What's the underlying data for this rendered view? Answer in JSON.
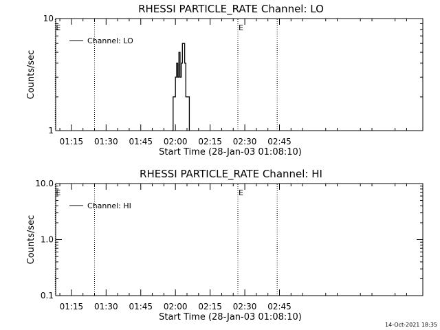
{
  "footer": {
    "timestamp": "14-Oct-2021 18:35"
  },
  "chart_data": [
    {
      "type": "line",
      "title": "RHESSI PARTICLE_RATE Channel: LO",
      "xlabel": "Start Time (28-Jan-03 01:08:10)",
      "ylabel": "Counts/sec",
      "yscale": "log",
      "xlim_minutes_after_0100": [
        8.2,
        167
      ],
      "ylim": [
        1,
        10
      ],
      "x_tick_labels": [
        "01:15",
        "01:30",
        "01:45",
        "02:00",
        "02:15",
        "02:30",
        "02:45"
      ],
      "y_tick_labels": [
        "1",
        "10"
      ],
      "legend": {
        "entry": "Channel: LO",
        "placement": "top-left"
      },
      "event_markers": [
        {
          "label": "E",
          "time": "01:08"
        },
        {
          "label": "",
          "time": "01:25"
        },
        {
          "label": "E",
          "time": "02:27"
        },
        {
          "label": "",
          "time": "02:44"
        }
      ],
      "series": [
        {
          "name": "Channel: LO",
          "x": [
            "01:58:30",
            "01:59:00",
            "01:59:30",
            "02:00:00",
            "02:00:30",
            "02:01:00",
            "02:01:30",
            "02:02:00",
            "02:02:30",
            "02:03:00",
            "02:03:30",
            "02:04:00",
            "02:04:30",
            "02:05:00",
            "02:05:30",
            "02:06:00"
          ],
          "y": [
            1,
            2,
            2,
            3,
            4,
            3,
            5,
            3,
            4,
            6,
            6,
            4,
            2,
            2,
            2,
            1
          ]
        }
      ]
    },
    {
      "type": "line",
      "title": "RHESSI PARTICLE_RATE Channel: HI",
      "xlabel": "Start Time (28-Jan-03 01:08:10)",
      "ylabel": "Counts/sec",
      "yscale": "log",
      "xlim_minutes_after_0100": [
        8.2,
        167
      ],
      "ylim": [
        0.1,
        10
      ],
      "x_tick_labels": [
        "01:15",
        "01:30",
        "01:45",
        "02:00",
        "02:15",
        "02:30",
        "02:45"
      ],
      "y_tick_labels": [
        "0.1",
        "1.0",
        "10.0"
      ],
      "legend": {
        "entry": "Channel: HI",
        "placement": "top-left"
      },
      "event_markers": [
        {
          "label": "E",
          "time": "01:08"
        },
        {
          "label": "",
          "time": "01:25"
        },
        {
          "label": "E",
          "time": "02:27"
        },
        {
          "label": "",
          "time": "02:44"
        }
      ],
      "series": [
        {
          "name": "Channel: HI",
          "x": [],
          "y": []
        }
      ]
    }
  ]
}
